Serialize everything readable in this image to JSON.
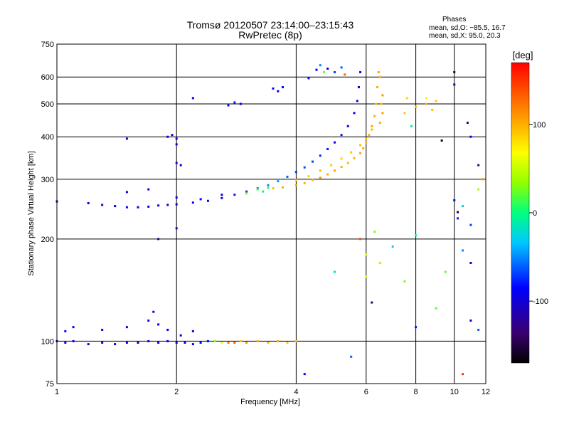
{
  "title_line1": "Tromsø 20120507 23:14:00–23:15:43",
  "title_line2": "RwPretec (8p)",
  "phases": {
    "title": "Phases",
    "o_line": "mean, sd,O: −85.5, 16.7",
    "x_line": "mean, sd,X:  95.0, 20.3"
  },
  "colorbar": {
    "unit_label": "[deg]",
    "ticks": [
      100,
      0,
      -100
    ],
    "range": [
      -170,
      170
    ],
    "colormap": "rainbow"
  },
  "chart_data": {
    "type": "scatter",
    "xlabel": "Frequency [MHz]",
    "ylabel": "Stationary phase Virtual Height [km]",
    "x_scale": "log",
    "y_scale": "log",
    "xlim": [
      1,
      12
    ],
    "ylim": [
      75,
      750
    ],
    "x_ticks": [
      1,
      2,
      4,
      6,
      8,
      10,
      12
    ],
    "y_ticks": [
      75,
      100,
      200,
      300,
      400,
      500,
      600,
      750
    ],
    "grid": true,
    "series": [
      {
        "points": [
          [
            1.0,
            100,
            -95
          ],
          [
            1.05,
            99,
            -100
          ],
          [
            1.1,
            100,
            -90
          ],
          [
            1.2,
            98,
            -100
          ],
          [
            1.3,
            99,
            -95
          ],
          [
            1.4,
            98,
            -100
          ],
          [
            1.5,
            99,
            -92
          ],
          [
            1.6,
            99,
            -100
          ],
          [
            1.7,
            100,
            -95
          ],
          [
            1.8,
            99,
            -98
          ],
          [
            1.9,
            100,
            -90
          ],
          [
            2.0,
            99,
            -100
          ],
          [
            2.1,
            99,
            -95
          ],
          [
            2.2,
            98,
            -90
          ],
          [
            2.3,
            99,
            -85
          ],
          [
            2.4,
            100,
            -80
          ],
          [
            2.5,
            100,
            30
          ],
          [
            2.6,
            99,
            60
          ],
          [
            2.7,
            99,
            120
          ],
          [
            2.8,
            99,
            130
          ],
          [
            2.9,
            100,
            90
          ],
          [
            3.0,
            99,
            110
          ],
          [
            3.2,
            100,
            100
          ],
          [
            3.4,
            99,
            95
          ],
          [
            3.6,
            100,
            100
          ],
          [
            3.8,
            99,
            90
          ],
          [
            4.0,
            100,
            95
          ],
          [
            1.05,
            107,
            -90
          ],
          [
            1.1,
            110,
            -95
          ],
          [
            1.3,
            108,
            -100
          ],
          [
            1.5,
            110,
            -90
          ],
          [
            1.7,
            115,
            -95
          ],
          [
            1.75,
            122,
            -100
          ],
          [
            1.8,
            112,
            -95
          ],
          [
            1.9,
            108,
            -90
          ],
          [
            2.05,
            104,
            -95
          ],
          [
            2.2,
            107,
            -100
          ],
          [
            1.0,
            258,
            -100
          ],
          [
            1.2,
            255,
            -95
          ],
          [
            1.3,
            252,
            -100
          ],
          [
            1.4,
            250,
            -95
          ],
          [
            1.5,
            248,
            -90
          ],
          [
            1.6,
            248,
            -100
          ],
          [
            1.7,
            249,
            -95
          ],
          [
            1.8,
            251,
            -92
          ],
          [
            1.9,
            252,
            -100
          ],
          [
            2.0,
            253,
            -95
          ],
          [
            2.2,
            256,
            -90
          ],
          [
            2.4,
            259,
            -95
          ],
          [
            2.6,
            264,
            -85
          ],
          [
            2.8,
            270,
            -80
          ],
          [
            3.0,
            276,
            -70
          ],
          [
            3.2,
            282,
            -60
          ],
          [
            3.4,
            288,
            -50
          ],
          [
            3.6,
            296,
            -45
          ],
          [
            3.8,
            305,
            -60
          ],
          [
            4.0,
            315,
            -70
          ],
          [
            4.2,
            325,
            -65
          ],
          [
            4.4,
            338,
            -70
          ],
          [
            4.6,
            352,
            -75
          ],
          [
            4.8,
            368,
            -80
          ],
          [
            5.0,
            385,
            -85
          ],
          [
            5.2,
            405,
            -80
          ],
          [
            5.4,
            430,
            -85
          ],
          [
            5.6,
            470,
            -90
          ],
          [
            5.7,
            510,
            -95
          ],
          [
            5.75,
            560,
            -100
          ],
          [
            5.8,
            620,
            -90
          ],
          [
            1.5,
            275,
            -95
          ],
          [
            1.7,
            280,
            -100
          ],
          [
            2.0,
            265,
            -95
          ],
          [
            2.3,
            262,
            -90
          ],
          [
            2.6,
            270,
            -100
          ],
          [
            1.5,
            395,
            -100
          ],
          [
            1.9,
            400,
            -95
          ],
          [
            1.95,
            405,
            -100
          ],
          [
            2.0,
            395,
            -90
          ],
          [
            2.0,
            380,
            -95
          ],
          [
            2.0,
            335,
            -100
          ],
          [
            2.05,
            330,
            -95
          ],
          [
            1.8,
            200,
            -110
          ],
          [
            2.0,
            215,
            -100
          ],
          [
            2.7,
            495,
            -80
          ],
          [
            2.8,
            505,
            -75
          ],
          [
            2.9,
            500,
            -85
          ],
          [
            2.2,
            520,
            -95
          ],
          [
            3.5,
            555,
            -90
          ],
          [
            3.6,
            545,
            -85
          ],
          [
            3.7,
            560,
            -95
          ],
          [
            4.3,
            595,
            -80
          ],
          [
            4.5,
            630,
            -90
          ],
          [
            4.8,
            635,
            -85
          ],
          [
            5.0,
            620,
            -70
          ],
          [
            5.2,
            640,
            -60
          ],
          [
            4.6,
            650,
            -50
          ]
        ]
      },
      {
        "points": [
          [
            3.5,
            282,
            95
          ],
          [
            3.7,
            284,
            100
          ],
          [
            4.0,
            288,
            105
          ],
          [
            4.2,
            292,
            100
          ],
          [
            4.4,
            298,
            95
          ],
          [
            4.6,
            303,
            110
          ],
          [
            4.8,
            310,
            100
          ],
          [
            5.0,
            318,
            105
          ],
          [
            5.2,
            326,
            100
          ],
          [
            5.4,
            335,
            95
          ],
          [
            5.6,
            346,
            100
          ],
          [
            5.8,
            358,
            105
          ],
          [
            5.9,
            370,
            100
          ],
          [
            6.0,
            385,
            95
          ],
          [
            6.1,
            405,
            100
          ],
          [
            6.2,
            430,
            105
          ],
          [
            6.3,
            460,
            100
          ],
          [
            6.35,
            500,
            95
          ],
          [
            6.4,
            560,
            100
          ],
          [
            6.45,
            620,
            105
          ],
          [
            4.0,
            298,
            90
          ],
          [
            4.3,
            306,
            85
          ],
          [
            4.6,
            318,
            95
          ],
          [
            4.9,
            330,
            90
          ],
          [
            5.2,
            345,
            85
          ],
          [
            5.5,
            360,
            90
          ],
          [
            5.8,
            378,
            95
          ],
          [
            6.0,
            395,
            90
          ],
          [
            6.2,
            420,
            95
          ],
          [
            6.5,
            440,
            100
          ],
          [
            6.6,
            470,
            105
          ],
          [
            6.55,
            500,
            95
          ],
          [
            6.6,
            530,
            110
          ],
          [
            6.5,
            600,
            100
          ],
          [
            7.5,
            470,
            90
          ],
          [
            7.6,
            520,
            85
          ],
          [
            8.0,
            490,
            95
          ],
          [
            8.5,
            500,
            100
          ],
          [
            9.0,
            510,
            90
          ],
          [
            8.8,
            480,
            95
          ]
        ]
      },
      {
        "points": [
          [
            3.0,
            272,
            40
          ],
          [
            3.2,
            280,
            20
          ],
          [
            3.3,
            276,
            0
          ],
          [
            3.4,
            283,
            10
          ],
          [
            4.7,
            620,
            20
          ],
          [
            5.3,
            610,
            130
          ],
          [
            5.0,
            160,
            -20
          ],
          [
            6.0,
            155,
            60
          ],
          [
            6.5,
            170,
            40
          ],
          [
            7.0,
            190,
            -30
          ],
          [
            7.5,
            150,
            30
          ],
          [
            8.0,
            205,
            0
          ],
          [
            9.5,
            160,
            20
          ],
          [
            10.5,
            185,
            -50
          ],
          [
            11.0,
            170,
            -100
          ],
          [
            4.2,
            80,
            -90
          ],
          [
            5.5,
            90,
            -60
          ],
          [
            8.0,
            110,
            -80
          ],
          [
            9.0,
            125,
            20
          ],
          [
            11.0,
            115,
            -110
          ],
          [
            11.5,
            108,
            -60
          ],
          [
            10.0,
            260,
            -110
          ],
          [
            10.2,
            240,
            -150
          ],
          [
            10.2,
            230,
            -80
          ],
          [
            10.5,
            250,
            -30
          ],
          [
            11.0,
            220,
            -70
          ],
          [
            11.5,
            280,
            40
          ],
          [
            11.8,
            300,
            110
          ],
          [
            10.0,
            570,
            -120
          ],
          [
            10.0,
            620,
            -150
          ],
          [
            10.8,
            440,
            -140
          ],
          [
            11.0,
            400,
            -90
          ],
          [
            11.5,
            330,
            -130
          ],
          [
            9.3,
            390,
            -160
          ],
          [
            8.5,
            520,
            60
          ],
          [
            7.8,
            430,
            -10
          ],
          [
            6.2,
            130,
            -140
          ],
          [
            5.8,
            200,
            140
          ],
          [
            6.0,
            180,
            60
          ],
          [
            6.3,
            210,
            30
          ],
          [
            10.5,
            80,
            150
          ]
        ]
      }
    ]
  }
}
